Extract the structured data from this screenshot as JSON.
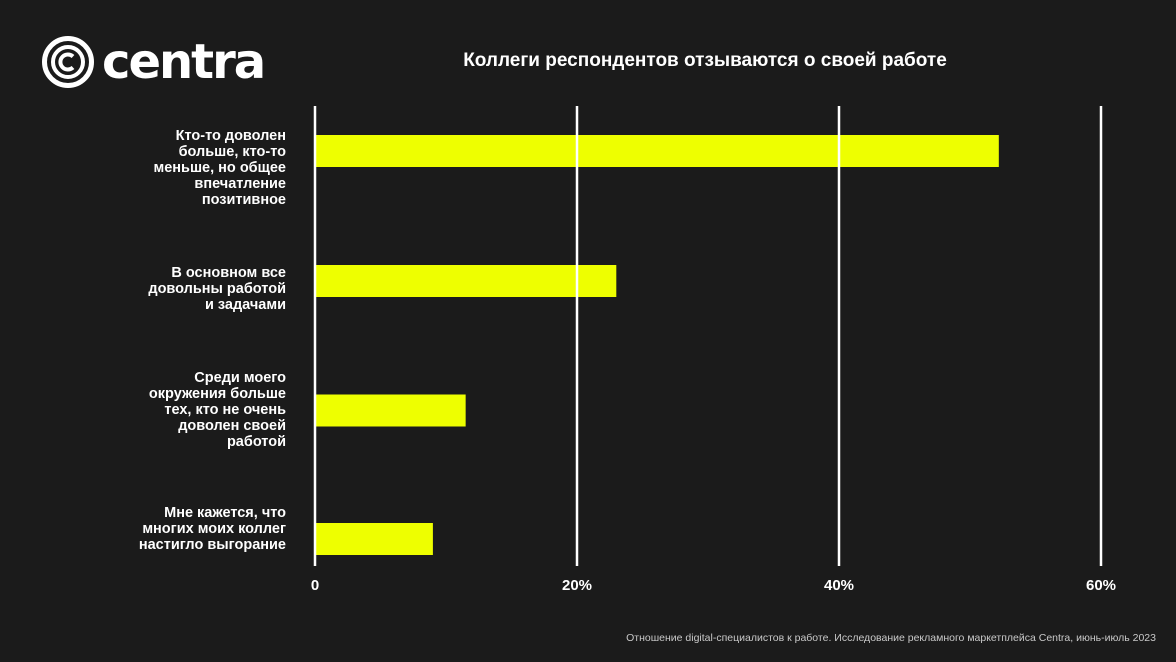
{
  "brand": {
    "name": "centra"
  },
  "footnote": "Отношение digital-специалистов к работе. Исследование рекламного маркетплейса Centra, июнь-июль 2023",
  "colors": {
    "background": "#1b1b1b",
    "bar": "#eeff00",
    "grid": "#ffffff",
    "text": "#ffffff"
  },
  "chart_data": {
    "type": "bar",
    "orientation": "horizontal",
    "title": "Коллеги респондентов отзываются о своей работе",
    "categories": [
      "Кто-то доволен больше, кто-то меньше, но общее впечатление позитивное",
      "В основном все довольны работой и задачами",
      "Среди моего окружения больше тех, кто не очень доволен своей работой",
      "Мне кажется, что многих моих коллег настигло выгорание"
    ],
    "values": [
      52.2,
      23.0,
      11.5,
      9.0
    ],
    "xlim": [
      0,
      60
    ],
    "xticks": [
      0,
      20,
      40,
      60
    ],
    "xtick_labels": [
      "0",
      "20%",
      "40%",
      "60%"
    ],
    "grid": true,
    "legend": "none",
    "bar_color": "#eeff00"
  }
}
